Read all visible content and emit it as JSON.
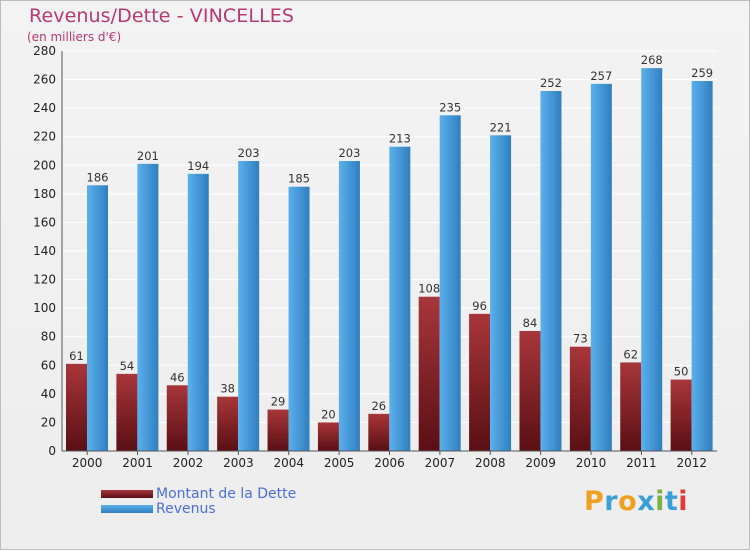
{
  "title": "Revenus/Dette - VINCELLES",
  "subtitle": "(en milliers d'€)",
  "logo": {
    "text": "Proxiti",
    "letters": [
      "P",
      "r",
      "o",
      "x",
      "i",
      "t",
      "i"
    ],
    "colors": [
      "#f0a020",
      "#3aa0d8",
      "#f0a020",
      "#3aa0d8",
      "#7cb342",
      "#3aa0d8",
      "#e53935"
    ]
  },
  "colors": {
    "debt_light": "#a8363a",
    "debt_dark": "#5a0f14",
    "revenue_light": "#5bb0ec",
    "revenue_dark": "#2f7fc0",
    "axis": "#555555",
    "grid": "#ffffff"
  },
  "chart_data": {
    "type": "bar",
    "title": "Revenus/Dette - VINCELLES",
    "ylabel": "(en milliers d'€)",
    "xlabel": "",
    "categories": [
      "2000",
      "2001",
      "2002",
      "2003",
      "2004",
      "2005",
      "2006",
      "2007",
      "2008",
      "2009",
      "2010",
      "2011",
      "2012"
    ],
    "series": [
      {
        "name": "Montant de la Dette",
        "values": [
          61,
          54,
          46,
          38,
          29,
          20,
          26,
          108,
          96,
          84,
          73,
          62,
          50
        ]
      },
      {
        "name": "Revenus",
        "values": [
          186,
          201,
          194,
          203,
          185,
          203,
          213,
          235,
          221,
          252,
          257,
          268,
          259
        ]
      }
    ],
    "ylim": [
      0,
      280
    ],
    "yticks": [
      0,
      20,
      40,
      60,
      80,
      100,
      120,
      140,
      160,
      180,
      200,
      220,
      240,
      260,
      280
    ],
    "legend_position": "bottom-left",
    "grid": true
  }
}
